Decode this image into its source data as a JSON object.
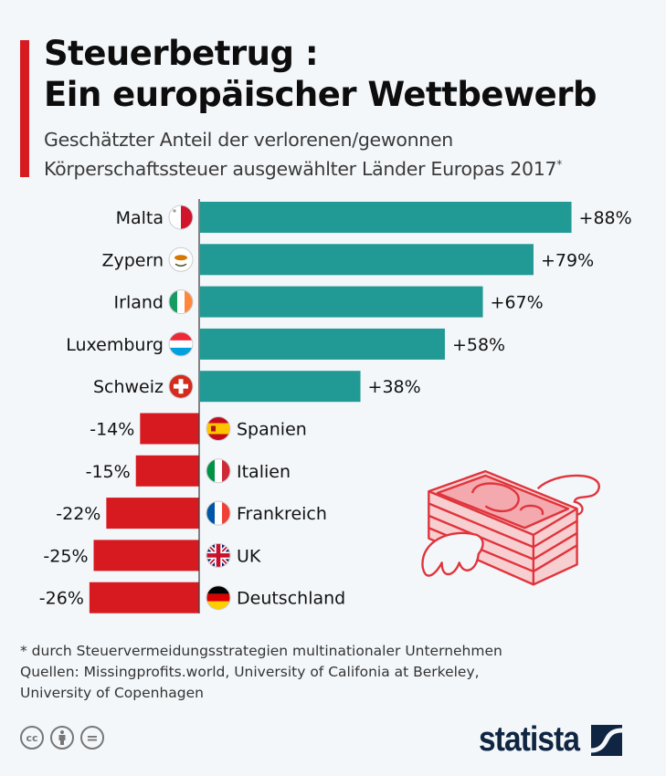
{
  "header": {
    "title_line1": "Steuerbetrug :",
    "title_line2": "Ein europäischer Wettbewerb",
    "subtitle_line1": "Geschätzter Anteil der verlorenen/gewonnen",
    "subtitle_line2": "Körperschaftssteuer ausgewählter Länder Europas 2017",
    "subtitle_marker": "*"
  },
  "colors": {
    "positive": "#219a96",
    "negative": "#d71920",
    "accent_stripe": "#d71920",
    "logo": "#0f2542"
  },
  "chart_data": {
    "type": "bar",
    "orientation": "horizontal",
    "title": "Steuerbetrug : Ein europäischer Wettbewerb",
    "subtitle": "Geschätzter Anteil der verlorenen/gewonnen Körperschaftssteuer ausgewählter Länder Europas 2017*",
    "xlabel": "",
    "ylabel": "",
    "unit": "%",
    "xlim": [
      -30,
      100
    ],
    "grid": false,
    "categories": [
      "Malta",
      "Zypern",
      "Irland",
      "Luxemburg",
      "Schweiz",
      "Spanien",
      "Italien",
      "Frankreich",
      "UK",
      "Deutschland"
    ],
    "values": [
      88,
      79,
      67,
      58,
      38,
      -14,
      -15,
      -22,
      -25,
      -26
    ],
    "value_labels": [
      "+88%",
      "+79%",
      "+67%",
      "+58%",
      "+38%",
      "-14%",
      "-15%",
      "-22%",
      "-25%",
      "-26%"
    ],
    "flags": [
      "malta-flag",
      "cyprus-flag",
      "ireland-flag",
      "luxembourg-flag",
      "switzerland-flag",
      "spain-flag",
      "italy-flag",
      "france-flag",
      "uk-flag",
      "germany-flag"
    ]
  },
  "footer": {
    "footnote": "* durch Steuervermeidungsstrategien multinationaler Unternehmen",
    "sources_line1": "Quellen: Missingprofits.world, University of Califonia at Berkeley,",
    "sources_line2": "University of Copenhagen",
    "license_icons": [
      "cc-icon",
      "attribution-icon",
      "no-derivatives-icon"
    ],
    "cc_text": "cc",
    "nd_text": "=",
    "logo_text": "statista"
  }
}
